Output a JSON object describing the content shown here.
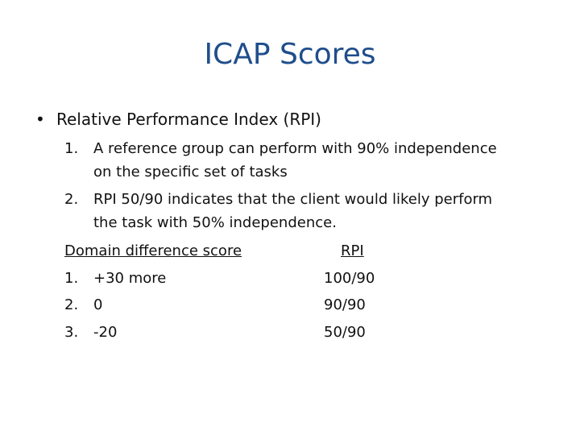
{
  "slide": {
    "title": "ICAP Scores",
    "bullet": {
      "marker": "•",
      "text": "Relative Performance Index (RPI)"
    },
    "numbered": [
      {
        "marker": "1.",
        "line1": "A reference group can perform with 90% independence",
        "line2": "on the specific set of tasks"
      },
      {
        "marker": "2.",
        "line1": "RPI 50/90 indicates that the client would likely perform",
        "line2": "the task with 50% independence."
      }
    ],
    "table": {
      "header_left": "Domain difference score",
      "header_right": "RPI",
      "rows": [
        {
          "marker": "1.",
          "score": "+30 more",
          "rpi": "100/90"
        },
        {
          "marker": "2.",
          "score": "0",
          "rpi": "90/90"
        },
        {
          "marker": "3.",
          "score": "-20",
          "rpi": "50/90"
        }
      ]
    }
  }
}
